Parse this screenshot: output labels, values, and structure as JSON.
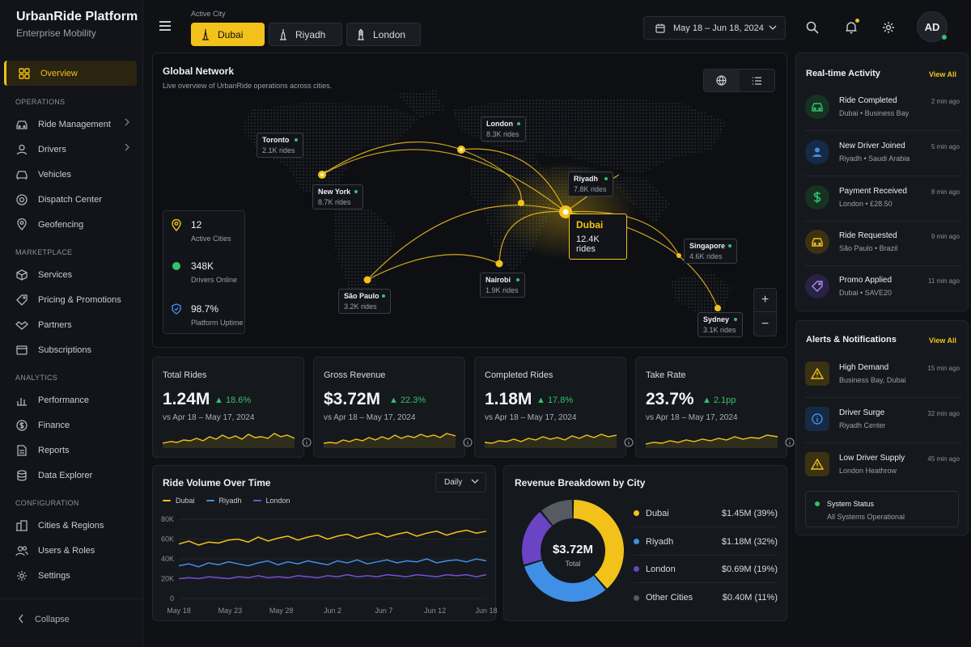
{
  "brand": {
    "title": "UrbanRide Platform",
    "subtitle": "Enterprise Mobility"
  },
  "sidebar": {
    "overview": "Overview",
    "sections": {
      "operations": "OPERATIONS",
      "marketplace": "MARKETPLACE",
      "analytics": "ANALYTICS",
      "configuration": "CONFIGURATION"
    },
    "items": {
      "ride_management": "Ride Management",
      "drivers": "Drivers",
      "vehicles": "Vehicles",
      "dispatch": "Dispatch Center",
      "geofencing": "Geofencing",
      "services": "Services",
      "pricing": "Pricing & Promotions",
      "partners": "Partners",
      "subscriptions": "Subscriptions",
      "performance": "Performance",
      "finance": "Finance",
      "reports": "Reports",
      "data_explorer": "Data Explorer",
      "cities": "Cities & Regions",
      "users": "Users & Roles",
      "settings": "Settings"
    },
    "collapse": "Collapse"
  },
  "header": {
    "active_city_label": "Active City",
    "cities": [
      "Dubai",
      "Riyadh",
      "London"
    ],
    "date_range": "May 18 – Jun 18, 2024",
    "avatar": "AD"
  },
  "map": {
    "title": "Global Network",
    "subtitle": "Live overview of UrbanRide operations across cities.",
    "cities": {
      "toronto": {
        "name": "Toronto",
        "rides": "2.1K rides"
      },
      "london": {
        "name": "London",
        "rides": "8.3K rides"
      },
      "newyork": {
        "name": "New York",
        "rides": "8.7K rides"
      },
      "riyadh": {
        "name": "Riyadh",
        "rides": "7.8K rides"
      },
      "dubai": {
        "name": "Dubai",
        "rides": "12.4K rides"
      },
      "singapore": {
        "name": "Singapore",
        "rides": "4.6K rides"
      },
      "nairobi": {
        "name": "Nairobi",
        "rides": "1.9K rides"
      },
      "saopaulo": {
        "name": "São Paulo",
        "rides": "3.2K rides"
      },
      "sydney": {
        "name": "Sydney",
        "rides": "3.1K rides"
      }
    },
    "stats": [
      {
        "value": "12",
        "label": "Active Cities"
      },
      {
        "value": "348K",
        "label": "Drivers Online"
      },
      {
        "value": "98.7%",
        "label": "Platform Uptime"
      }
    ],
    "zoom_in": "+",
    "zoom_out": "−"
  },
  "kpis": [
    {
      "label": "Total Rides",
      "value": "1.24M",
      "change": "▲ 18.6%",
      "compare": "vs Apr 18 – May 17, 2024"
    },
    {
      "label": "Gross Revenue",
      "value": "$3.72M",
      "change": "▲ 22.3%",
      "compare": "vs Apr 18 – May 17, 2024"
    },
    {
      "label": "Completed Rides",
      "value": "1.18M",
      "change": "▲ 17.8%",
      "compare": "vs Apr 18 – May 17, 2024"
    },
    {
      "label": "Take Rate",
      "value": "23.7%",
      "change": "▲ 2.1pp",
      "compare": "vs Apr 18 – May 17, 2024"
    }
  ],
  "volume": {
    "title": "Ride Volume Over Time",
    "granularity": "Daily"
  },
  "revenue": {
    "title": "Revenue Breakdown by City",
    "total": "$3.72M",
    "total_label": "Total"
  },
  "chart_data": [
    {
      "type": "line",
      "series": [
        {
          "name": "Dubai",
          "color": "#f2c21a",
          "values": [
            55,
            58,
            54,
            57,
            56,
            59,
            60,
            57,
            62,
            58,
            61,
            63,
            59,
            62,
            64,
            60,
            63,
            65,
            61,
            64,
            66,
            62,
            65,
            67,
            63,
            66,
            68,
            64,
            67,
            69,
            66,
            68
          ]
        },
        {
          "name": "Riyadh",
          "color": "#3f8fe6",
          "values": [
            33,
            35,
            32,
            36,
            34,
            37,
            35,
            33,
            36,
            38,
            34,
            37,
            35,
            38,
            36,
            34,
            38,
            36,
            39,
            35,
            37,
            39,
            36,
            38,
            37,
            40,
            36,
            38,
            39,
            37,
            40,
            38
          ]
        },
        {
          "name": "London",
          "color": "#7a4fd6",
          "values": [
            20,
            21,
            20,
            22,
            21,
            20,
            22,
            21,
            23,
            21,
            22,
            21,
            23,
            22,
            21,
            23,
            22,
            24,
            22,
            23,
            22,
            24,
            23,
            22,
            24,
            23,
            22,
            24,
            23,
            24,
            22,
            24
          ]
        }
      ],
      "x_ticks": [
        "May 18",
        "May 23",
        "May 28",
        "Jun 2",
        "Jun 7",
        "Jun 12",
        "Jun 18"
      ],
      "y_ticks": [
        "0",
        "20K",
        "40K",
        "60K",
        "80K"
      ],
      "ylim": [
        0,
        85000
      ]
    },
    {
      "type": "pie",
      "slices": [
        {
          "name": "Dubai",
          "amount": "$1.45M (39%)",
          "value": 39,
          "color": "#f2c21a"
        },
        {
          "name": "Riyadh",
          "amount": "$1.18M (32%)",
          "value": 32,
          "color": "#3f8fe6"
        },
        {
          "name": "London",
          "amount": "$0.69M (19%)",
          "value": 19,
          "color": "#6a44c4"
        },
        {
          "name": "Other Cities",
          "amount": "$0.40M (11%)",
          "value": 11,
          "color": "#555a63"
        }
      ]
    }
  ],
  "activity": {
    "title": "Real-time Activity",
    "view_all": "View All",
    "items": [
      {
        "title": "Ride Completed",
        "sub": "Dubai • Business Bay",
        "time": "2 min ago"
      },
      {
        "title": "New Driver Joined",
        "sub": "Riyadh • Saudi Arabia",
        "time": "5 min ago"
      },
      {
        "title": "Payment Received",
        "sub": "London • £28.50",
        "time": "8 min ago"
      },
      {
        "title": "Ride Requested",
        "sub": "São Paulo • Brazil",
        "time": "9 min ago"
      },
      {
        "title": "Promo Applied",
        "sub": "Dubai • SAVE20",
        "time": "11 min ago"
      }
    ]
  },
  "alerts": {
    "title": "Alerts & Notifications",
    "view_all": "View All",
    "items": [
      {
        "title": "High Demand",
        "sub": "Business Bay, Dubai",
        "time": "15 min ago"
      },
      {
        "title": "Driver Surge",
        "sub": "Riyadh Center",
        "time": "32 min ago"
      },
      {
        "title": "Low Driver Supply",
        "sub": "London Heathrow",
        "time": "45 min ago"
      }
    ],
    "system": {
      "title": "System Status",
      "sub": "All Systems Operational"
    }
  }
}
